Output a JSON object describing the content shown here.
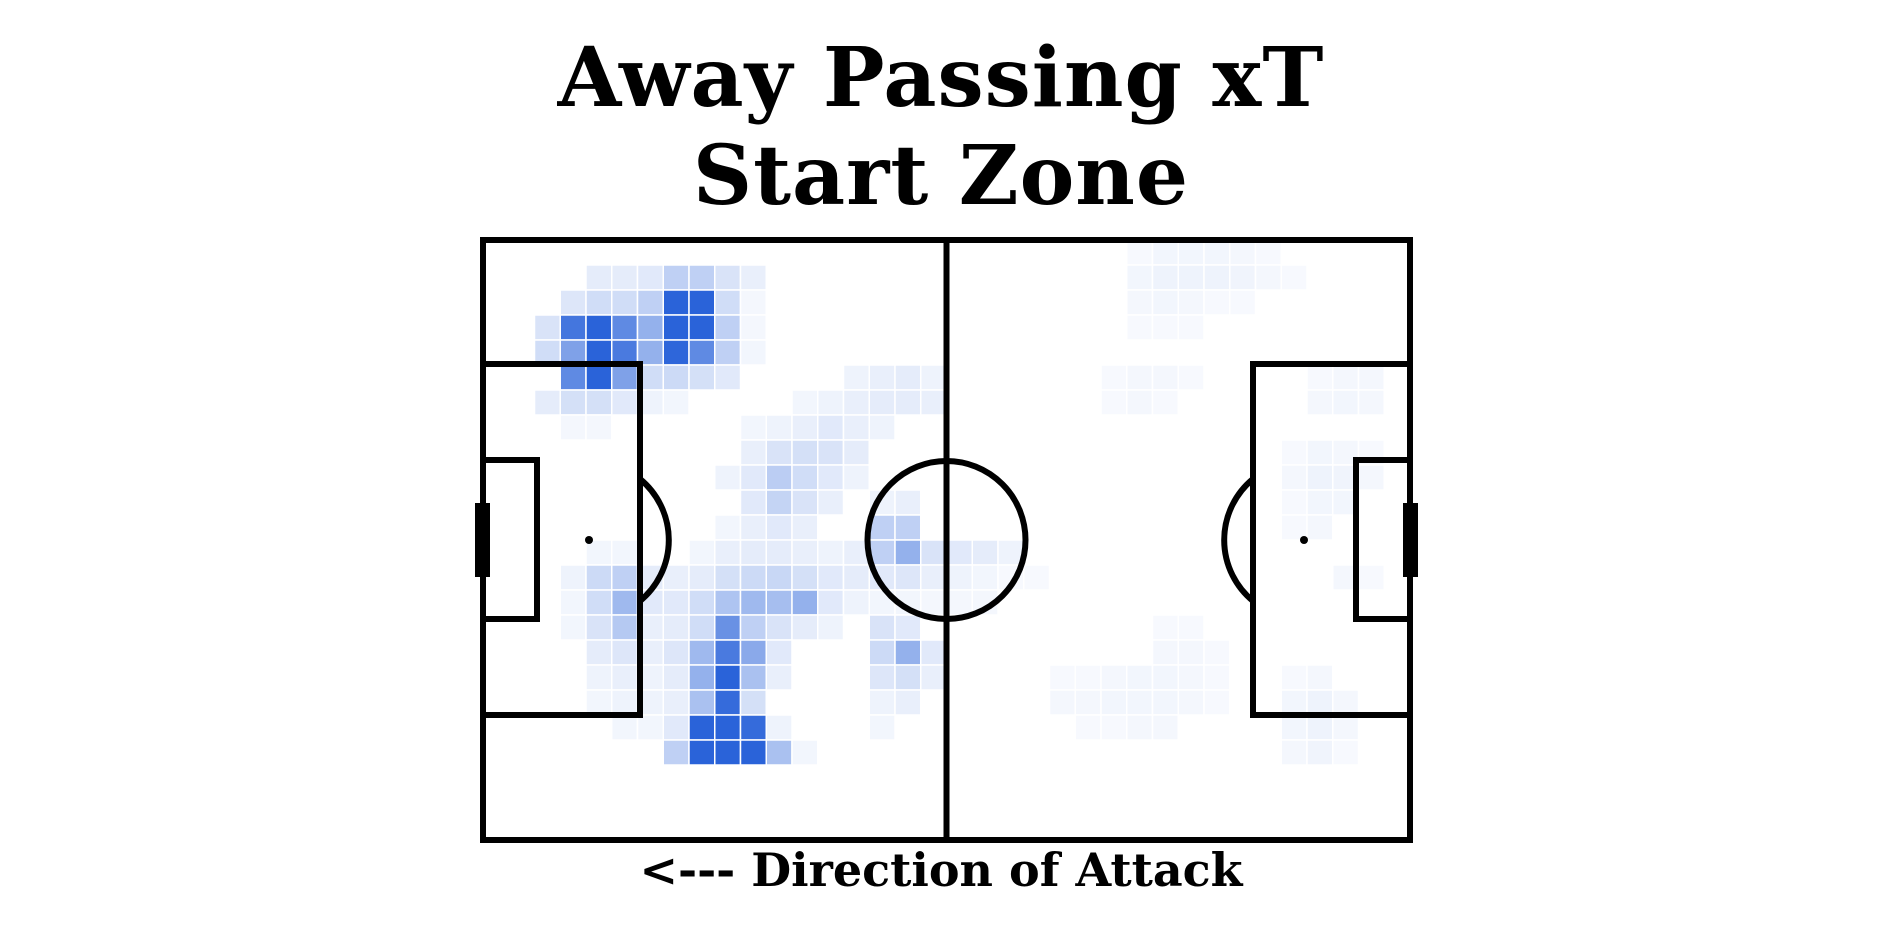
{
  "title_line1": "Away Passing xT",
  "title_line2": "Start Zone",
  "caption": "<--- Direction of Attack",
  "colors": {
    "heat": "#2a63d9",
    "lines": "#000000",
    "background": "#ffffff",
    "cell_border": "#ffffff"
  },
  "chart_data": {
    "type": "heatmap",
    "title": "Away Passing xT Start Zone",
    "xlabel": "<--- Direction of Attack",
    "ylabel": "",
    "grid": {
      "columns": 36,
      "rows": 24
    },
    "cells": [
      {
        "c": 4,
        "r": 1,
        "v": 0.12
      },
      {
        "c": 5,
        "r": 1,
        "v": 0.12
      },
      {
        "c": 6,
        "r": 1,
        "v": 0.14
      },
      {
        "c": 7,
        "r": 1,
        "v": 0.3
      },
      {
        "c": 8,
        "r": 1,
        "v": 0.3
      },
      {
        "c": 9,
        "r": 1,
        "v": 0.18
      },
      {
        "c": 10,
        "r": 1,
        "v": 0.1
      },
      {
        "c": 3,
        "r": 2,
        "v": 0.16
      },
      {
        "c": 4,
        "r": 2,
        "v": 0.22
      },
      {
        "c": 5,
        "r": 2,
        "v": 0.22
      },
      {
        "c": 6,
        "r": 2,
        "v": 0.3
      },
      {
        "c": 7,
        "r": 2,
        "v": 1.0
      },
      {
        "c": 8,
        "r": 2,
        "v": 1.0
      },
      {
        "c": 9,
        "r": 2,
        "v": 0.22
      },
      {
        "c": 10,
        "r": 2,
        "v": 0.05
      },
      {
        "c": 2,
        "r": 3,
        "v": 0.18
      },
      {
        "c": 3,
        "r": 3,
        "v": 0.88
      },
      {
        "c": 4,
        "r": 3,
        "v": 1.0
      },
      {
        "c": 5,
        "r": 3,
        "v": 0.75
      },
      {
        "c": 6,
        "r": 3,
        "v": 0.5
      },
      {
        "c": 7,
        "r": 3,
        "v": 1.0
      },
      {
        "c": 8,
        "r": 3,
        "v": 1.0
      },
      {
        "c": 9,
        "r": 3,
        "v": 0.3
      },
      {
        "c": 10,
        "r": 3,
        "v": 0.05
      },
      {
        "c": 2,
        "r": 4,
        "v": 0.22
      },
      {
        "c": 3,
        "r": 4,
        "v": 0.6
      },
      {
        "c": 4,
        "r": 4,
        "v": 1.0
      },
      {
        "c": 5,
        "r": 4,
        "v": 0.85
      },
      {
        "c": 6,
        "r": 4,
        "v": 0.5
      },
      {
        "c": 7,
        "r": 4,
        "v": 0.98
      },
      {
        "c": 8,
        "r": 4,
        "v": 0.75
      },
      {
        "c": 9,
        "r": 4,
        "v": 0.3
      },
      {
        "c": 10,
        "r": 4,
        "v": 0.06
      },
      {
        "c": 3,
        "r": 5,
        "v": 0.75
      },
      {
        "c": 4,
        "r": 5,
        "v": 1.0
      },
      {
        "c": 5,
        "r": 5,
        "v": 0.6
      },
      {
        "c": 6,
        "r": 5,
        "v": 0.22
      },
      {
        "c": 7,
        "r": 5,
        "v": 0.24
      },
      {
        "c": 8,
        "r": 5,
        "v": 0.2
      },
      {
        "c": 9,
        "r": 5,
        "v": 0.14
      },
      {
        "c": 14,
        "r": 5,
        "v": 0.08
      },
      {
        "c": 15,
        "r": 5,
        "v": 0.1
      },
      {
        "c": 16,
        "r": 5,
        "v": 0.12
      },
      {
        "c": 17,
        "r": 5,
        "v": 0.08
      },
      {
        "c": 2,
        "r": 6,
        "v": 0.12
      },
      {
        "c": 3,
        "r": 6,
        "v": 0.2
      },
      {
        "c": 4,
        "r": 6,
        "v": 0.2
      },
      {
        "c": 5,
        "r": 6,
        "v": 0.14
      },
      {
        "c": 6,
        "r": 6,
        "v": 0.08
      },
      {
        "c": 7,
        "r": 6,
        "v": 0.06
      },
      {
        "c": 12,
        "r": 6,
        "v": 0.06
      },
      {
        "c": 13,
        "r": 6,
        "v": 0.08
      },
      {
        "c": 14,
        "r": 6,
        "v": 0.1
      },
      {
        "c": 15,
        "r": 6,
        "v": 0.12
      },
      {
        "c": 16,
        "r": 6,
        "v": 0.12
      },
      {
        "c": 17,
        "r": 6,
        "v": 0.1
      },
      {
        "c": 3,
        "r": 7,
        "v": 0.05
      },
      {
        "c": 4,
        "r": 7,
        "v": 0.05
      },
      {
        "c": 10,
        "r": 7,
        "v": 0.06
      },
      {
        "c": 11,
        "r": 7,
        "v": 0.08
      },
      {
        "c": 12,
        "r": 7,
        "v": 0.1
      },
      {
        "c": 13,
        "r": 7,
        "v": 0.14
      },
      {
        "c": 14,
        "r": 7,
        "v": 0.1
      },
      {
        "c": 15,
        "r": 7,
        "v": 0.08
      },
      {
        "c": 10,
        "r": 8,
        "v": 0.1
      },
      {
        "c": 11,
        "r": 8,
        "v": 0.18
      },
      {
        "c": 12,
        "r": 8,
        "v": 0.2
      },
      {
        "c": 13,
        "r": 8,
        "v": 0.18
      },
      {
        "c": 14,
        "r": 8,
        "v": 0.12
      },
      {
        "c": 9,
        "r": 9,
        "v": 0.08
      },
      {
        "c": 10,
        "r": 9,
        "v": 0.14
      },
      {
        "c": 11,
        "r": 9,
        "v": 0.32
      },
      {
        "c": 12,
        "r": 9,
        "v": 0.22
      },
      {
        "c": 13,
        "r": 9,
        "v": 0.14
      },
      {
        "c": 14,
        "r": 9,
        "v": 0.08
      },
      {
        "c": 10,
        "r": 10,
        "v": 0.14
      },
      {
        "c": 11,
        "r": 10,
        "v": 0.28
      },
      {
        "c": 12,
        "r": 10,
        "v": 0.18
      },
      {
        "c": 13,
        "r": 10,
        "v": 0.1
      },
      {
        "c": 15,
        "r": 10,
        "v": 0.08
      },
      {
        "c": 16,
        "r": 10,
        "v": 0.1
      },
      {
        "c": 9,
        "r": 11,
        "v": 0.06
      },
      {
        "c": 10,
        "r": 11,
        "v": 0.1
      },
      {
        "c": 11,
        "r": 11,
        "v": 0.14
      },
      {
        "c": 12,
        "r": 11,
        "v": 0.1
      },
      {
        "c": 15,
        "r": 11,
        "v": 0.3
      },
      {
        "c": 16,
        "r": 11,
        "v": 0.3
      },
      {
        "c": 4,
        "r": 12,
        "v": 0.06
      },
      {
        "c": 5,
        "r": 12,
        "v": 0.06
      },
      {
        "c": 8,
        "r": 12,
        "v": 0.06
      },
      {
        "c": 9,
        "r": 12,
        "v": 0.1
      },
      {
        "c": 10,
        "r": 12,
        "v": 0.12
      },
      {
        "c": 11,
        "r": 12,
        "v": 0.12
      },
      {
        "c": 12,
        "r": 12,
        "v": 0.1
      },
      {
        "c": 13,
        "r": 12,
        "v": 0.08
      },
      {
        "c": 14,
        "r": 12,
        "v": 0.1
      },
      {
        "c": 15,
        "r": 12,
        "v": 0.3
      },
      {
        "c": 16,
        "r": 12,
        "v": 0.5
      },
      {
        "c": 17,
        "r": 12,
        "v": 0.18
      },
      {
        "c": 18,
        "r": 12,
        "v": 0.14
      },
      {
        "c": 19,
        "r": 12,
        "v": 0.12
      },
      {
        "c": 20,
        "r": 12,
        "v": 0.08
      },
      {
        "c": 3,
        "r": 13,
        "v": 0.08
      },
      {
        "c": 4,
        "r": 13,
        "v": 0.24
      },
      {
        "c": 5,
        "r": 13,
        "v": 0.3
      },
      {
        "c": 6,
        "r": 13,
        "v": 0.12
      },
      {
        "c": 7,
        "r": 13,
        "v": 0.1
      },
      {
        "c": 8,
        "r": 13,
        "v": 0.12
      },
      {
        "c": 9,
        "r": 13,
        "v": 0.2
      },
      {
        "c": 10,
        "r": 13,
        "v": 0.24
      },
      {
        "c": 11,
        "r": 13,
        "v": 0.26
      },
      {
        "c": 12,
        "r": 13,
        "v": 0.2
      },
      {
        "c": 13,
        "r": 13,
        "v": 0.14
      },
      {
        "c": 14,
        "r": 13,
        "v": 0.12
      },
      {
        "c": 15,
        "r": 13,
        "v": 0.14
      },
      {
        "c": 16,
        "r": 13,
        "v": 0.16
      },
      {
        "c": 17,
        "r": 13,
        "v": 0.1
      },
      {
        "c": 18,
        "r": 13,
        "v": 0.08
      },
      {
        "c": 19,
        "r": 13,
        "v": 0.06
      },
      {
        "c": 3,
        "r": 14,
        "v": 0.06
      },
      {
        "c": 4,
        "r": 14,
        "v": 0.22
      },
      {
        "c": 5,
        "r": 14,
        "v": 0.45
      },
      {
        "c": 6,
        "r": 14,
        "v": 0.14
      },
      {
        "c": 7,
        "r": 14,
        "v": 0.14
      },
      {
        "c": 8,
        "r": 14,
        "v": 0.22
      },
      {
        "c": 9,
        "r": 14,
        "v": 0.38
      },
      {
        "c": 10,
        "r": 14,
        "v": 0.45
      },
      {
        "c": 11,
        "r": 14,
        "v": 0.42
      },
      {
        "c": 12,
        "r": 14,
        "v": 0.5
      },
      {
        "c": 13,
        "r": 14,
        "v": 0.14
      },
      {
        "c": 14,
        "r": 14,
        "v": 0.08
      },
      {
        "c": 15,
        "r": 14,
        "v": 0.06
      },
      {
        "c": 16,
        "r": 14,
        "v": 0.06
      },
      {
        "c": 17,
        "r": 14,
        "v": 0.05
      },
      {
        "c": 18,
        "r": 14,
        "v": 0.05
      },
      {
        "c": 19,
        "r": 14,
        "v": 0.05
      },
      {
        "c": 3,
        "r": 15,
        "v": 0.06
      },
      {
        "c": 4,
        "r": 15,
        "v": 0.18
      },
      {
        "c": 5,
        "r": 15,
        "v": 0.35
      },
      {
        "c": 6,
        "r": 15,
        "v": 0.1
      },
      {
        "c": 7,
        "r": 15,
        "v": 0.12
      },
      {
        "c": 8,
        "r": 15,
        "v": 0.22
      },
      {
        "c": 9,
        "r": 15,
        "v": 0.7
      },
      {
        "c": 10,
        "r": 15,
        "v": 0.3
      },
      {
        "c": 11,
        "r": 15,
        "v": 0.18
      },
      {
        "c": 12,
        "r": 15,
        "v": 0.12
      },
      {
        "c": 13,
        "r": 15,
        "v": 0.08
      },
      {
        "c": 15,
        "r": 15,
        "v": 0.18
      },
      {
        "c": 16,
        "r": 15,
        "v": 0.14
      },
      {
        "c": 4,
        "r": 16,
        "v": 0.12
      },
      {
        "c": 5,
        "r": 16,
        "v": 0.16
      },
      {
        "c": 6,
        "r": 16,
        "v": 0.1
      },
      {
        "c": 7,
        "r": 16,
        "v": 0.16
      },
      {
        "c": 8,
        "r": 16,
        "v": 0.45
      },
      {
        "c": 9,
        "r": 16,
        "v": 0.85
      },
      {
        "c": 10,
        "r": 16,
        "v": 0.55
      },
      {
        "c": 11,
        "r": 16,
        "v": 0.14
      },
      {
        "c": 15,
        "r": 16,
        "v": 0.24
      },
      {
        "c": 16,
        "r": 16,
        "v": 0.5
      },
      {
        "c": 17,
        "r": 16,
        "v": 0.14
      },
      {
        "c": 4,
        "r": 17,
        "v": 0.08
      },
      {
        "c": 5,
        "r": 17,
        "v": 0.1
      },
      {
        "c": 6,
        "r": 17,
        "v": 0.08
      },
      {
        "c": 7,
        "r": 17,
        "v": 0.12
      },
      {
        "c": 8,
        "r": 17,
        "v": 0.5
      },
      {
        "c": 9,
        "r": 17,
        "v": 1.0
      },
      {
        "c": 10,
        "r": 17,
        "v": 0.4
      },
      {
        "c": 11,
        "r": 17,
        "v": 0.1
      },
      {
        "c": 15,
        "r": 17,
        "v": 0.16
      },
      {
        "c": 16,
        "r": 17,
        "v": 0.2
      },
      {
        "c": 17,
        "r": 17,
        "v": 0.1
      },
      {
        "c": 4,
        "r": 18,
        "v": 0.06
      },
      {
        "c": 5,
        "r": 18,
        "v": 0.08
      },
      {
        "c": 6,
        "r": 18,
        "v": 0.08
      },
      {
        "c": 7,
        "r": 18,
        "v": 0.1
      },
      {
        "c": 8,
        "r": 18,
        "v": 0.4
      },
      {
        "c": 9,
        "r": 18,
        "v": 0.95
      },
      {
        "c": 10,
        "r": 18,
        "v": 0.2
      },
      {
        "c": 15,
        "r": 18,
        "v": 0.08
      },
      {
        "c": 16,
        "r": 18,
        "v": 0.1
      },
      {
        "c": 5,
        "r": 19,
        "v": 0.06
      },
      {
        "c": 6,
        "r": 19,
        "v": 0.06
      },
      {
        "c": 7,
        "r": 19,
        "v": 0.14
      },
      {
        "c": 8,
        "r": 19,
        "v": 1.0
      },
      {
        "c": 9,
        "r": 19,
        "v": 1.0
      },
      {
        "c": 10,
        "r": 19,
        "v": 0.95
      },
      {
        "c": 11,
        "r": 19,
        "v": 0.08
      },
      {
        "c": 15,
        "r": 19,
        "v": 0.06
      },
      {
        "c": 7,
        "r": 20,
        "v": 0.3
      },
      {
        "c": 8,
        "r": 20,
        "v": 1.0
      },
      {
        "c": 9,
        "r": 20,
        "v": 1.0
      },
      {
        "c": 10,
        "r": 20,
        "v": 1.0
      },
      {
        "c": 11,
        "r": 20,
        "v": 0.4
      },
      {
        "c": 12,
        "r": 20,
        "v": 0.06
      },
      {
        "c": 25,
        "r": 0,
        "v": 0.04
      },
      {
        "c": 26,
        "r": 0,
        "v": 0.06
      },
      {
        "c": 27,
        "r": 0,
        "v": 0.06
      },
      {
        "c": 28,
        "r": 0,
        "v": 0.06
      },
      {
        "c": 29,
        "r": 0,
        "v": 0.05
      },
      {
        "c": 30,
        "r": 0,
        "v": 0.04
      },
      {
        "c": 25,
        "r": 1,
        "v": 0.06
      },
      {
        "c": 26,
        "r": 1,
        "v": 0.08
      },
      {
        "c": 27,
        "r": 1,
        "v": 0.08
      },
      {
        "c": 28,
        "r": 1,
        "v": 0.08
      },
      {
        "c": 29,
        "r": 1,
        "v": 0.07
      },
      {
        "c": 30,
        "r": 1,
        "v": 0.05
      },
      {
        "c": 31,
        "r": 1,
        "v": 0.04
      },
      {
        "c": 25,
        "r": 2,
        "v": 0.05
      },
      {
        "c": 26,
        "r": 2,
        "v": 0.06
      },
      {
        "c": 27,
        "r": 2,
        "v": 0.05
      },
      {
        "c": 28,
        "r": 2,
        "v": 0.04
      },
      {
        "c": 29,
        "r": 2,
        "v": 0.04
      },
      {
        "c": 25,
        "r": 3,
        "v": 0.04
      },
      {
        "c": 26,
        "r": 3,
        "v": 0.04
      },
      {
        "c": 27,
        "r": 3,
        "v": 0.04
      },
      {
        "c": 24,
        "r": 5,
        "v": 0.04
      },
      {
        "c": 25,
        "r": 5,
        "v": 0.05
      },
      {
        "c": 26,
        "r": 5,
        "v": 0.05
      },
      {
        "c": 27,
        "r": 5,
        "v": 0.04
      },
      {
        "c": 32,
        "r": 5,
        "v": 0.04
      },
      {
        "c": 33,
        "r": 5,
        "v": 0.05
      },
      {
        "c": 34,
        "r": 5,
        "v": 0.05
      },
      {
        "c": 24,
        "r": 6,
        "v": 0.04
      },
      {
        "c": 25,
        "r": 6,
        "v": 0.05
      },
      {
        "c": 26,
        "r": 6,
        "v": 0.04
      },
      {
        "c": 32,
        "r": 6,
        "v": 0.05
      },
      {
        "c": 33,
        "r": 6,
        "v": 0.06
      },
      {
        "c": 34,
        "r": 6,
        "v": 0.05
      },
      {
        "c": 31,
        "r": 8,
        "v": 0.04
      },
      {
        "c": 32,
        "r": 8,
        "v": 0.06
      },
      {
        "c": 33,
        "r": 8,
        "v": 0.05
      },
      {
        "c": 34,
        "r": 8,
        "v": 0.04
      },
      {
        "c": 31,
        "r": 9,
        "v": 0.05
      },
      {
        "c": 32,
        "r": 9,
        "v": 0.08
      },
      {
        "c": 33,
        "r": 9,
        "v": 0.07
      },
      {
        "c": 34,
        "r": 9,
        "v": 0.05
      },
      {
        "c": 31,
        "r": 10,
        "v": 0.04
      },
      {
        "c": 32,
        "r": 10,
        "v": 0.06
      },
      {
        "c": 33,
        "r": 10,
        "v": 0.06
      },
      {
        "c": 31,
        "r": 11,
        "v": 0.04
      },
      {
        "c": 32,
        "r": 11,
        "v": 0.05
      },
      {
        "c": 20,
        "r": 13,
        "v": 0.04
      },
      {
        "c": 21,
        "r": 13,
        "v": 0.04
      },
      {
        "c": 33,
        "r": 13,
        "v": 0.05
      },
      {
        "c": 34,
        "r": 13,
        "v": 0.04
      },
      {
        "c": 26,
        "r": 15,
        "v": 0.04
      },
      {
        "c": 27,
        "r": 15,
        "v": 0.04
      },
      {
        "c": 26,
        "r": 16,
        "v": 0.05
      },
      {
        "c": 27,
        "r": 16,
        "v": 0.05
      },
      {
        "c": 28,
        "r": 16,
        "v": 0.04
      },
      {
        "c": 22,
        "r": 17,
        "v": 0.04
      },
      {
        "c": 23,
        "r": 17,
        "v": 0.04
      },
      {
        "c": 24,
        "r": 17,
        "v": 0.05
      },
      {
        "c": 25,
        "r": 17,
        "v": 0.06
      },
      {
        "c": 26,
        "r": 17,
        "v": 0.06
      },
      {
        "c": 27,
        "r": 17,
        "v": 0.05
      },
      {
        "c": 28,
        "r": 17,
        "v": 0.04
      },
      {
        "c": 31,
        "r": 17,
        "v": 0.04
      },
      {
        "c": 32,
        "r": 17,
        "v": 0.05
      },
      {
        "c": 22,
        "r": 18,
        "v": 0.05
      },
      {
        "c": 23,
        "r": 18,
        "v": 0.05
      },
      {
        "c": 24,
        "r": 18,
        "v": 0.06
      },
      {
        "c": 25,
        "r": 18,
        "v": 0.06
      },
      {
        "c": 26,
        "r": 18,
        "v": 0.06
      },
      {
        "c": 27,
        "r": 18,
        "v": 0.05
      },
      {
        "c": 28,
        "r": 18,
        "v": 0.04
      },
      {
        "c": 31,
        "r": 18,
        "v": 0.06
      },
      {
        "c": 32,
        "r": 18,
        "v": 0.08
      },
      {
        "c": 33,
        "r": 18,
        "v": 0.05
      },
      {
        "c": 23,
        "r": 19,
        "v": 0.04
      },
      {
        "c": 24,
        "r": 19,
        "v": 0.04
      },
      {
        "c": 25,
        "r": 19,
        "v": 0.05
      },
      {
        "c": 26,
        "r": 19,
        "v": 0.05
      },
      {
        "c": 31,
        "r": 19,
        "v": 0.06
      },
      {
        "c": 32,
        "r": 19,
        "v": 0.08
      },
      {
        "c": 33,
        "r": 19,
        "v": 0.05
      },
      {
        "c": 31,
        "r": 20,
        "v": 0.05
      },
      {
        "c": 32,
        "r": 20,
        "v": 0.07
      },
      {
        "c": 33,
        "r": 20,
        "v": 0.04
      }
    ]
  }
}
